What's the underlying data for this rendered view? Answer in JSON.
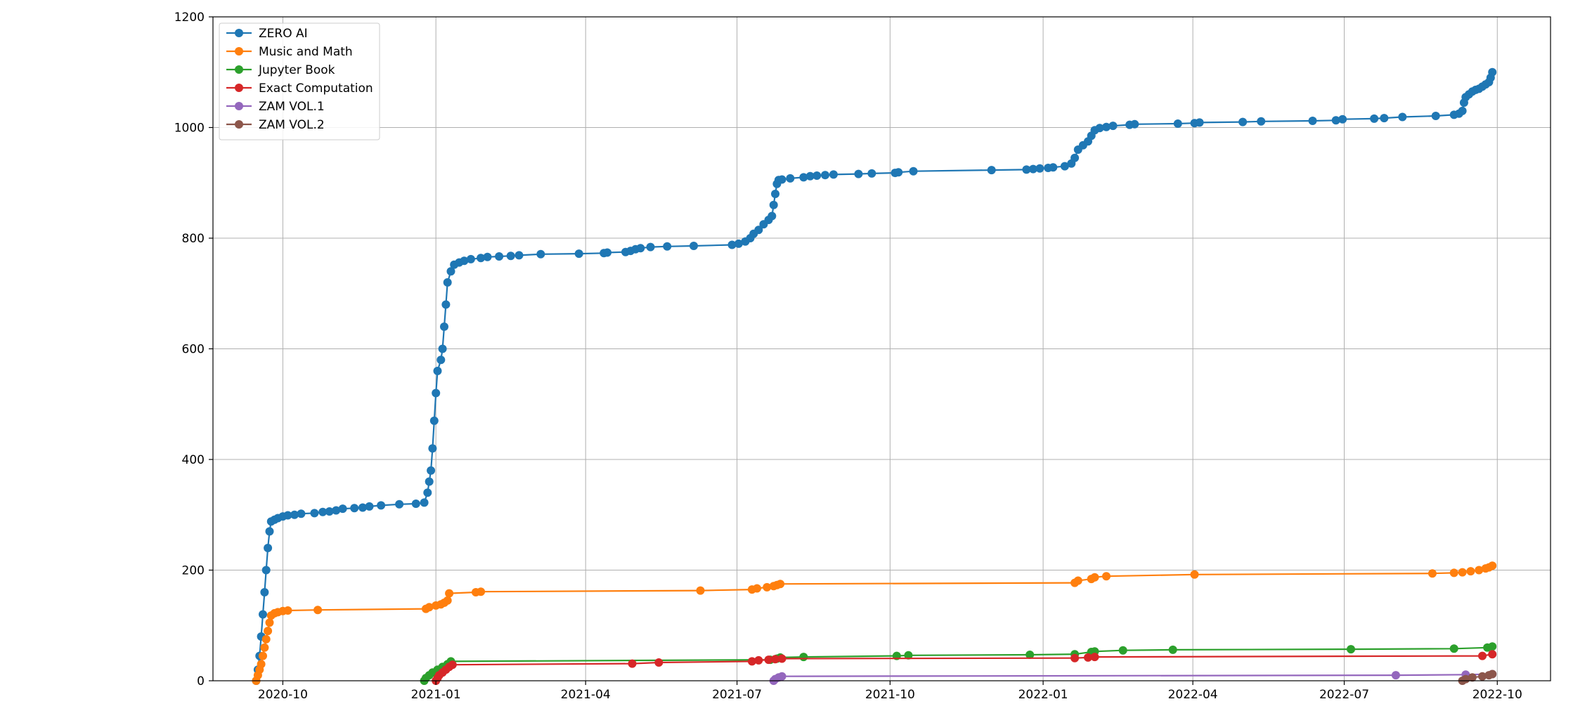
{
  "chart_data": {
    "type": "line",
    "title": "",
    "xlabel": "",
    "ylabel": "",
    "x_axis_type": "date",
    "xlim": [
      "2020-08-20",
      "2022-11-02"
    ],
    "ylim": [
      0,
      1200
    ],
    "x_ticks": [
      "2020-10",
      "2021-01",
      "2021-04",
      "2021-07",
      "2021-10",
      "2022-01",
      "2022-04",
      "2022-07",
      "2022-10"
    ],
    "y_ticks": [
      0,
      200,
      400,
      600,
      800,
      1000,
      1200
    ],
    "grid": true,
    "legend_position": "upper-left",
    "marker": "circle",
    "series": [
      {
        "name": "ZERO AI",
        "color": "#1f77b4",
        "points": [
          [
            "2020-09-15",
            0
          ],
          [
            "2020-09-16",
            20
          ],
          [
            "2020-09-17",
            45
          ],
          [
            "2020-09-18",
            80
          ],
          [
            "2020-09-19",
            120
          ],
          [
            "2020-09-20",
            160
          ],
          [
            "2020-09-21",
            200
          ],
          [
            "2020-09-22",
            240
          ],
          [
            "2020-09-23",
            270
          ],
          [
            "2020-09-24",
            288
          ],
          [
            "2020-09-26",
            291
          ],
          [
            "2020-09-28",
            294
          ],
          [
            "2020-10-01",
            297
          ],
          [
            "2020-10-04",
            299
          ],
          [
            "2020-10-08",
            300
          ],
          [
            "2020-10-12",
            302
          ],
          [
            "2020-10-20",
            303
          ],
          [
            "2020-10-25",
            305
          ],
          [
            "2020-10-29",
            306
          ],
          [
            "2020-11-02",
            308
          ],
          [
            "2020-11-06",
            311
          ],
          [
            "2020-11-13",
            312
          ],
          [
            "2020-11-18",
            313
          ],
          [
            "2020-11-22",
            315
          ],
          [
            "2020-11-29",
            317
          ],
          [
            "2020-12-10",
            319
          ],
          [
            "2020-12-20",
            320
          ],
          [
            "2020-12-25",
            322
          ],
          [
            "2020-12-27",
            340
          ],
          [
            "2020-12-28",
            360
          ],
          [
            "2020-12-29",
            380
          ],
          [
            "2020-12-30",
            420
          ],
          [
            "2020-12-31",
            470
          ],
          [
            "2021-01-01",
            520
          ],
          [
            "2021-01-02",
            560
          ],
          [
            "2021-01-04",
            580
          ],
          [
            "2021-01-05",
            600
          ],
          [
            "2021-01-06",
            640
          ],
          [
            "2021-01-07",
            680
          ],
          [
            "2021-01-08",
            720
          ],
          [
            "2021-01-10",
            740
          ],
          [
            "2021-01-12",
            752
          ],
          [
            "2021-01-15",
            756
          ],
          [
            "2021-01-18",
            759
          ],
          [
            "2021-01-22",
            762
          ],
          [
            "2021-01-28",
            764
          ],
          [
            "2021-02-01",
            766
          ],
          [
            "2021-02-08",
            767
          ],
          [
            "2021-02-15",
            768
          ],
          [
            "2021-02-20",
            769
          ],
          [
            "2021-03-05",
            771
          ],
          [
            "2021-03-28",
            772
          ],
          [
            "2021-04-12",
            773
          ],
          [
            "2021-04-14",
            774
          ],
          [
            "2021-04-25",
            775
          ],
          [
            "2021-04-28",
            777
          ],
          [
            "2021-05-01",
            780
          ],
          [
            "2021-05-04",
            782
          ],
          [
            "2021-05-10",
            784
          ],
          [
            "2021-05-20",
            785
          ],
          [
            "2021-06-05",
            786
          ],
          [
            "2021-06-28",
            788
          ],
          [
            "2021-07-02",
            790
          ],
          [
            "2021-07-06",
            794
          ],
          [
            "2021-07-09",
            800
          ],
          [
            "2021-07-11",
            808
          ],
          [
            "2021-07-14",
            815
          ],
          [
            "2021-07-17",
            825
          ],
          [
            "2021-07-20",
            833
          ],
          [
            "2021-07-22",
            840
          ],
          [
            "2021-07-23",
            860
          ],
          [
            "2021-07-24",
            880
          ],
          [
            "2021-07-25",
            898
          ],
          [
            "2021-07-26",
            905
          ],
          [
            "2021-07-28",
            906
          ],
          [
            "2021-08-02",
            908
          ],
          [
            "2021-08-10",
            910
          ],
          [
            "2021-08-14",
            912
          ],
          [
            "2021-08-18",
            913
          ],
          [
            "2021-08-23",
            914
          ],
          [
            "2021-08-28",
            915
          ],
          [
            "2021-09-12",
            916
          ],
          [
            "2021-09-20",
            917
          ],
          [
            "2021-10-04",
            918
          ],
          [
            "2021-10-06",
            919
          ],
          [
            "2021-10-15",
            921
          ],
          [
            "2021-12-01",
            923
          ],
          [
            "2021-12-22",
            924
          ],
          [
            "2021-12-26",
            925
          ],
          [
            "2021-12-30",
            926
          ],
          [
            "2022-01-04",
            927
          ],
          [
            "2022-01-07",
            928
          ],
          [
            "2022-01-14",
            930
          ],
          [
            "2022-01-18",
            935
          ],
          [
            "2022-01-20",
            945
          ],
          [
            "2022-01-22",
            960
          ],
          [
            "2022-01-25",
            968
          ],
          [
            "2022-01-28",
            975
          ],
          [
            "2022-01-30",
            985
          ],
          [
            "2022-02-01",
            995
          ],
          [
            "2022-02-04",
            999
          ],
          [
            "2022-02-08",
            1001
          ],
          [
            "2022-02-12",
            1003
          ],
          [
            "2022-02-22",
            1005
          ],
          [
            "2022-02-25",
            1006
          ],
          [
            "2022-03-23",
            1007
          ],
          [
            "2022-04-02",
            1008
          ],
          [
            "2022-04-05",
            1009
          ],
          [
            "2022-05-01",
            1010
          ],
          [
            "2022-05-12",
            1011
          ],
          [
            "2022-06-12",
            1012
          ],
          [
            "2022-06-26",
            1013
          ],
          [
            "2022-06-30",
            1015
          ],
          [
            "2022-07-19",
            1016
          ],
          [
            "2022-07-25",
            1017
          ],
          [
            "2022-08-05",
            1019
          ],
          [
            "2022-08-25",
            1021
          ],
          [
            "2022-09-05",
            1023
          ],
          [
            "2022-09-08",
            1025
          ],
          [
            "2022-09-10",
            1030
          ],
          [
            "2022-09-11",
            1045
          ],
          [
            "2022-09-12",
            1055
          ],
          [
            "2022-09-14",
            1060
          ],
          [
            "2022-09-16",
            1065
          ],
          [
            "2022-09-18",
            1068
          ],
          [
            "2022-09-20",
            1070
          ],
          [
            "2022-09-22",
            1074
          ],
          [
            "2022-09-24",
            1078
          ],
          [
            "2022-09-26",
            1082
          ],
          [
            "2022-09-27",
            1090
          ],
          [
            "2022-09-28",
            1100
          ]
        ]
      },
      {
        "name": "Music and Math",
        "color": "#ff7f0e",
        "points": [
          [
            "2020-09-15",
            0
          ],
          [
            "2020-09-16",
            10
          ],
          [
            "2020-09-17",
            20
          ],
          [
            "2020-09-18",
            30
          ],
          [
            "2020-09-19",
            45
          ],
          [
            "2020-09-20",
            60
          ],
          [
            "2020-09-21",
            75
          ],
          [
            "2020-09-22",
            90
          ],
          [
            "2020-09-23",
            105
          ],
          [
            "2020-09-24",
            118
          ],
          [
            "2020-09-26",
            122
          ],
          [
            "2020-09-28",
            124
          ],
          [
            "2020-10-01",
            126
          ],
          [
            "2020-10-04",
            127
          ],
          [
            "2020-10-22",
            128
          ],
          [
            "2020-12-26",
            130
          ],
          [
            "2020-12-28",
            133
          ],
          [
            "2021-01-01",
            136
          ],
          [
            "2021-01-04",
            138
          ],
          [
            "2021-01-06",
            141
          ],
          [
            "2021-01-08",
            145
          ],
          [
            "2021-01-09",
            158
          ],
          [
            "2021-01-25",
            160
          ],
          [
            "2021-01-28",
            161
          ],
          [
            "2021-06-09",
            163
          ],
          [
            "2021-07-10",
            165
          ],
          [
            "2021-07-13",
            167
          ],
          [
            "2021-07-19",
            169
          ],
          [
            "2021-07-23",
            171
          ],
          [
            "2021-07-25",
            173
          ],
          [
            "2021-07-27",
            175
          ],
          [
            "2022-01-20",
            177
          ],
          [
            "2022-01-22",
            181
          ],
          [
            "2022-01-30",
            184
          ],
          [
            "2022-02-01",
            187
          ],
          [
            "2022-02-08",
            189
          ],
          [
            "2022-04-02",
            192
          ],
          [
            "2022-08-23",
            194
          ],
          [
            "2022-09-05",
            195
          ],
          [
            "2022-09-10",
            196
          ],
          [
            "2022-09-15",
            198
          ],
          [
            "2022-09-20",
            200
          ],
          [
            "2022-09-24",
            203
          ],
          [
            "2022-09-26",
            205
          ],
          [
            "2022-09-28",
            208
          ]
        ]
      },
      {
        "name": "Jupyter Book",
        "color": "#2ca02c",
        "points": [
          [
            "2020-12-25",
            0
          ],
          [
            "2020-12-26",
            5
          ],
          [
            "2020-12-28",
            10
          ],
          [
            "2020-12-30",
            15
          ],
          [
            "2021-01-02",
            20
          ],
          [
            "2021-01-05",
            25
          ],
          [
            "2021-01-08",
            30
          ],
          [
            "2021-01-10",
            35
          ],
          [
            "2021-07-21",
            38
          ],
          [
            "2021-07-25",
            40
          ],
          [
            "2021-07-27",
            42
          ],
          [
            "2021-08-10",
            43
          ],
          [
            "2021-10-05",
            45
          ],
          [
            "2021-10-12",
            46
          ],
          [
            "2021-12-24",
            47
          ],
          [
            "2022-01-20",
            48
          ],
          [
            "2022-01-30",
            52
          ],
          [
            "2022-02-01",
            53
          ],
          [
            "2022-02-18",
            55
          ],
          [
            "2022-03-20",
            56
          ],
          [
            "2022-07-05",
            57
          ],
          [
            "2022-09-05",
            58
          ],
          [
            "2022-09-25",
            60
          ],
          [
            "2022-09-28",
            62
          ]
        ]
      },
      {
        "name": "Exact Computation",
        "color": "#d62728",
        "points": [
          [
            "2021-01-01",
            0
          ],
          [
            "2021-01-02",
            5
          ],
          [
            "2021-01-03",
            10
          ],
          [
            "2021-01-05",
            15
          ],
          [
            "2021-01-07",
            20
          ],
          [
            "2021-01-09",
            25
          ],
          [
            "2021-01-11",
            29
          ],
          [
            "2021-04-29",
            31
          ],
          [
            "2021-05-15",
            33
          ],
          [
            "2021-07-10",
            35
          ],
          [
            "2021-07-14",
            37
          ],
          [
            "2021-07-20",
            38
          ],
          [
            "2021-07-24",
            39
          ],
          [
            "2021-07-28",
            40
          ],
          [
            "2022-01-20",
            41
          ],
          [
            "2022-01-28",
            42
          ],
          [
            "2022-02-01",
            43
          ],
          [
            "2022-09-22",
            45
          ],
          [
            "2022-09-28",
            48
          ]
        ]
      },
      {
        "name": "ZAM VOL.1",
        "color": "#9467bd",
        "points": [
          [
            "2021-07-23",
            0
          ],
          [
            "2021-07-24",
            3
          ],
          [
            "2021-07-26",
            6
          ],
          [
            "2021-07-28",
            8
          ],
          [
            "2022-08-01",
            10
          ],
          [
            "2022-09-12",
            11
          ],
          [
            "2022-09-28",
            12
          ]
        ]
      },
      {
        "name": "ZAM VOL.2",
        "color": "#8c564b",
        "points": [
          [
            "2022-09-10",
            0
          ],
          [
            "2022-09-12",
            3
          ],
          [
            "2022-09-16",
            6
          ],
          [
            "2022-09-22",
            8
          ],
          [
            "2022-09-26",
            10
          ],
          [
            "2022-09-28",
            12
          ]
        ]
      }
    ]
  }
}
